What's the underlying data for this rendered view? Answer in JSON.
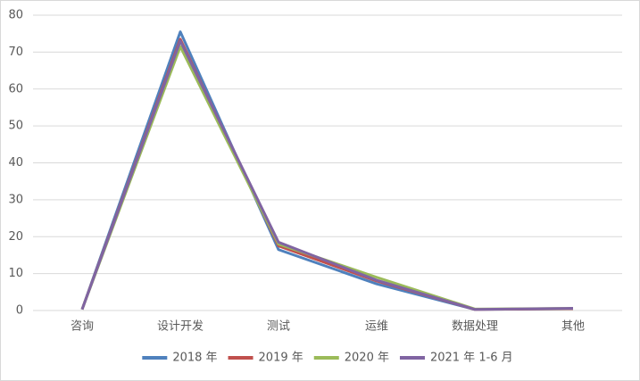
{
  "chart_data": {
    "type": "line",
    "categories": [
      "咨询",
      "设计开发",
      "测试",
      "运维",
      "数据处理",
      "其他"
    ],
    "series": [
      {
        "name": "2018 年",
        "color": "#4f81bd",
        "values": [
          0.3,
          75.5,
          16.5,
          7.2,
          0.3,
          0.5
        ]
      },
      {
        "name": "2019 年",
        "color": "#c0504d",
        "values": [
          0.3,
          73.5,
          17.5,
          8,
          0.3,
          0.5
        ]
      },
      {
        "name": "2020 年",
        "color": "#9bbb59",
        "values": [
          0.3,
          71.5,
          18,
          9,
          0.4,
          0.6
        ]
      },
      {
        "name": "2021 年 1-6 月",
        "color": "#8064a2",
        "values": [
          0.3,
          73,
          18.5,
          8.2,
          0.3,
          0.6
        ]
      }
    ],
    "ylim": [
      0,
      80
    ],
    "yticks": [
      0,
      10,
      20,
      30,
      40,
      50,
      60,
      70,
      80
    ],
    "grid": true,
    "legend": "bottom"
  }
}
